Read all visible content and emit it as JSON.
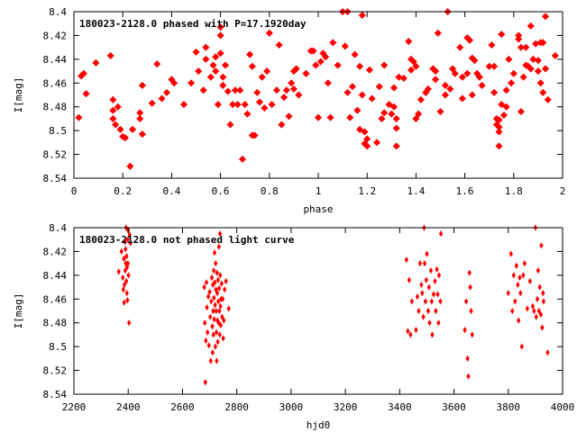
{
  "colors": {
    "points": "#ff0000",
    "axes": "#000000",
    "background": "#ffffff"
  },
  "chart_data": [
    {
      "type": "scatter",
      "title": "180023-2128.0 phased with P=17.1920day",
      "xlabel": "phase",
      "ylabel": "I[mag]",
      "xlim": [
        0,
        2
      ],
      "ylim": [
        8.4,
        8.54
      ],
      "y_inverted": true,
      "xticks": [
        "0",
        "0.2",
        "0.4",
        "0.6",
        "0.8",
        "1",
        "1.2",
        "1.4",
        "1.6",
        "1.8",
        "2"
      ],
      "yticks": [
        "8.4",
        "8.42",
        "8.44",
        "8.46",
        "8.48",
        "8.5",
        "8.52",
        "8.54"
      ],
      "grid": false,
      "marker": "star",
      "points": [
        [
          0.02,
          8.489
        ],
        [
          0.03,
          8.454
        ],
        [
          0.04,
          8.452
        ],
        [
          0.05,
          8.469
        ],
        [
          0.09,
          8.443
        ],
        [
          0.15,
          8.437
        ],
        [
          0.16,
          8.474
        ],
        [
          0.16,
          8.483
        ],
        [
          0.16,
          8.49
        ],
        [
          0.17,
          8.495
        ],
        [
          0.18,
          8.48
        ],
        [
          0.19,
          8.499
        ],
        [
          0.2,
          8.505
        ],
        [
          0.21,
          8.506
        ],
        [
          0.23,
          8.53
        ],
        [
          0.24,
          8.499
        ],
        [
          0.27,
          8.485
        ],
        [
          0.27,
          8.49
        ],
        [
          0.28,
          8.503
        ],
        [
          0.28,
          8.462
        ],
        [
          0.32,
          8.477
        ],
        [
          0.34,
          8.444
        ],
        [
          0.36,
          8.473
        ],
        [
          0.38,
          8.468
        ],
        [
          0.4,
          8.457
        ],
        [
          0.41,
          8.46
        ],
        [
          0.45,
          8.478
        ],
        [
          0.48,
          8.46
        ],
        [
          0.5,
          8.434
        ],
        [
          0.51,
          8.45
        ],
        [
          0.53,
          8.466
        ],
        [
          0.54,
          8.43
        ],
        [
          0.54,
          8.44
        ],
        [
          0.56,
          8.455
        ],
        [
          0.57,
          8.445
        ],
        [
          0.58,
          8.438
        ],
        [
          0.58,
          8.45
        ],
        [
          0.59,
          8.478
        ],
        [
          0.6,
          8.413
        ],
        [
          0.6,
          8.42
        ],
        [
          0.6,
          8.435
        ],
        [
          0.61,
          8.455
        ],
        [
          0.61,
          8.462
        ],
        [
          0.62,
          8.445
        ],
        [
          0.63,
          8.467
        ],
        [
          0.64,
          8.495
        ],
        [
          0.65,
          8.478
        ],
        [
          0.66,
          8.466
        ],
        [
          0.67,
          8.478
        ],
        [
          0.68,
          8.466
        ],
        [
          0.69,
          8.524
        ],
        [
          0.7,
          8.478
        ],
        [
          0.71,
          8.486
        ],
        [
          0.72,
          8.436
        ],
        [
          0.73,
          8.446
        ],
        [
          0.73,
          8.504
        ],
        [
          0.74,
          8.504
        ],
        [
          0.75,
          8.468
        ],
        [
          0.76,
          8.476
        ],
        [
          0.77,
          8.455
        ],
        [
          0.78,
          8.481
        ],
        [
          0.79,
          8.45
        ],
        [
          0.8,
          8.418
        ],
        [
          0.81,
          8.478
        ],
        [
          0.83,
          8.466
        ],
        [
          0.84,
          8.428
        ],
        [
          0.85,
          8.495
        ],
        [
          0.86,
          8.472
        ],
        [
          0.87,
          8.466
        ],
        [
          0.88,
          8.488
        ],
        [
          0.89,
          8.46
        ],
        [
          0.9,
          8.45
        ],
        [
          0.9,
          8.465
        ],
        [
          0.91,
          8.448
        ],
        [
          0.92,
          8.47
        ],
        [
          0.95,
          8.452
        ],
        [
          0.97,
          8.433
        ],
        [
          0.98,
          8.433
        ],
        [
          0.99,
          8.445
        ],
        [
          1.0,
          8.489
        ],
        [
          1.01,
          8.442
        ],
        [
          1.02,
          8.435
        ],
        [
          1.03,
          8.438
        ],
        [
          1.04,
          8.46
        ],
        [
          1.05,
          8.489
        ],
        [
          1.06,
          8.426
        ],
        [
          1.08,
          8.445
        ],
        [
          1.1,
          8.4
        ],
        [
          1.11,
          8.429
        ],
        [
          1.12,
          8.4
        ],
        [
          1.12,
          8.468
        ],
        [
          1.13,
          8.489
        ],
        [
          1.14,
          8.463
        ],
        [
          1.15,
          8.436
        ],
        [
          1.16,
          8.483
        ],
        [
          1.17,
          8.446
        ],
        [
          1.17,
          8.499
        ],
        [
          1.18,
          8.403
        ],
        [
          1.18,
          8.47
        ],
        [
          1.19,
          8.501
        ],
        [
          1.19,
          8.511
        ],
        [
          1.2,
          8.507
        ],
        [
          1.2,
          8.513
        ],
        [
          1.21,
          8.449
        ],
        [
          1.22,
          8.473
        ],
        [
          1.24,
          8.51
        ],
        [
          1.25,
          8.463
        ],
        [
          1.26,
          8.49
        ],
        [
          1.27,
          8.485
        ],
        [
          1.27,
          8.445
        ],
        [
          1.29,
          8.478
        ],
        [
          1.3,
          8.486
        ],
        [
          1.31,
          8.464
        ],
        [
          1.31,
          8.48
        ],
        [
          1.32,
          8.49
        ],
        [
          1.32,
          8.498
        ],
        [
          1.32,
          8.513
        ],
        [
          1.33,
          8.455
        ],
        [
          1.35,
          8.456
        ],
        [
          1.37,
          8.425
        ],
        [
          1.38,
          8.44
        ],
        [
          1.38,
          8.449
        ],
        [
          1.39,
          8.442
        ],
        [
          1.4,
          8.446
        ],
        [
          1.4,
          8.49
        ],
        [
          1.41,
          8.486
        ],
        [
          1.42,
          8.474
        ],
        [
          1.44,
          8.468
        ],
        [
          1.45,
          8.465
        ],
        [
          1.47,
          8.448
        ],
        [
          1.48,
          8.45
        ],
        [
          1.48,
          8.457
        ],
        [
          1.49,
          8.418
        ],
        [
          1.5,
          8.484
        ],
        [
          1.52,
          8.462
        ],
        [
          1.52,
          8.47
        ],
        [
          1.53,
          8.4
        ],
        [
          1.54,
          8.465
        ],
        [
          1.55,
          8.448
        ],
        [
          1.56,
          8.452
        ],
        [
          1.58,
          8.43
        ],
        [
          1.59,
          8.455
        ],
        [
          1.59,
          8.473
        ],
        [
          1.61,
          8.452
        ],
        [
          1.61,
          8.422
        ],
        [
          1.62,
          8.424
        ],
        [
          1.63,
          8.439
        ],
        [
          1.63,
          8.47
        ],
        [
          1.64,
          8.441
        ],
        [
          1.65,
          8.452
        ],
        [
          1.66,
          8.455
        ],
        [
          1.67,
          8.462
        ],
        [
          1.7,
          8.446
        ],
        [
          1.71,
          8.428
        ],
        [
          1.72,
          8.446
        ],
        [
          1.72,
          8.468
        ],
        [
          1.73,
          8.49
        ],
        [
          1.73,
          8.495
        ],
        [
          1.74,
          8.491
        ],
        [
          1.74,
          8.497
        ],
        [
          1.74,
          8.501
        ],
        [
          1.74,
          8.513
        ],
        [
          1.75,
          8.419
        ],
        [
          1.75,
          8.478
        ],
        [
          1.76,
          8.487
        ],
        [
          1.77,
          8.466
        ],
        [
          1.77,
          8.48
        ],
        [
          1.78,
          8.44
        ],
        [
          1.79,
          8.46
        ],
        [
          1.8,
          8.452
        ],
        [
          1.82,
          8.42
        ],
        [
          1.82,
          8.423
        ],
        [
          1.83,
          8.43
        ],
        [
          1.83,
          8.484
        ],
        [
          1.84,
          8.455
        ],
        [
          1.85,
          8.43
        ],
        [
          1.85,
          8.445
        ],
        [
          1.86,
          8.446
        ],
        [
          1.87,
          8.412
        ],
        [
          1.87,
          8.448
        ],
        [
          1.88,
          8.44
        ],
        [
          1.89,
          8.427
        ],
        [
          1.9,
          8.441
        ],
        [
          1.9,
          8.45
        ],
        [
          1.91,
          8.426
        ],
        [
          1.91,
          8.46
        ],
        [
          1.92,
          8.426
        ],
        [
          1.92,
          8.468
        ],
        [
          1.93,
          8.404
        ],
        [
          1.93,
          8.448
        ],
        [
          1.94,
          8.474
        ],
        [
          1.97,
          8.437
        ]
      ]
    },
    {
      "type": "scatter",
      "title": "180023-2128.0 not phased light curve",
      "xlabel": "hjd0",
      "ylabel": "I[mag]",
      "xlim": [
        2200,
        4000
      ],
      "ylim": [
        8.4,
        8.54
      ],
      "y_inverted": true,
      "xticks": [
        "2200",
        "2400",
        "2600",
        "2800",
        "3000",
        "3200",
        "3400",
        "3600",
        "3800",
        "4000"
      ],
      "yticks": [
        "8.4",
        "8.42",
        "8.44",
        "8.46",
        "8.48",
        "8.5",
        "8.52",
        "8.54"
      ],
      "grid": false,
      "marker": "diamond",
      "points": [
        [
          2365,
          8.437
        ],
        [
          2375,
          8.42
        ],
        [
          2380,
          8.442
        ],
        [
          2382,
          8.452
        ],
        [
          2384,
          8.426
        ],
        [
          2385,
          8.463
        ],
        [
          2386,
          8.448
        ],
        [
          2388,
          8.412
        ],
        [
          2389,
          8.436
        ],
        [
          2390,
          8.418
        ],
        [
          2391,
          8.43
        ],
        [
          2392,
          8.4
        ],
        [
          2393,
          8.445
        ],
        [
          2394,
          8.424
        ],
        [
          2395,
          8.455
        ],
        [
          2396,
          8.433
        ],
        [
          2397,
          8.461
        ],
        [
          2398,
          8.41
        ],
        [
          2399,
          8.43
        ],
        [
          2400,
          8.402
        ],
        [
          2401,
          8.44
        ],
        [
          2403,
          8.48
        ],
        [
          2405,
          8.406
        ],
        [
          2408,
          8.413
        ],
        [
          2680,
          8.45
        ],
        [
          2682,
          8.48
        ],
        [
          2684,
          8.53
        ],
        [
          2686,
          8.495
        ],
        [
          2688,
          8.446
        ],
        [
          2690,
          8.467
        ],
        [
          2692,
          8.488
        ],
        [
          2695,
          8.458
        ],
        [
          2697,
          8.499
        ],
        [
          2700,
          8.454
        ],
        [
          2702,
          8.475
        ],
        [
          2704,
          8.512
        ],
        [
          2706,
          8.462
        ],
        [
          2708,
          8.442
        ],
        [
          2710,
          8.483
        ],
        [
          2711,
          8.505
        ],
        [
          2712,
          8.448
        ],
        [
          2713,
          8.47
        ],
        [
          2714,
          8.49
        ],
        [
          2715,
          8.436
        ],
        [
          2716,
          8.459
        ],
        [
          2717,
          8.477
        ],
        [
          2718,
          8.421
        ],
        [
          2719,
          8.446
        ],
        [
          2720,
          8.465
        ],
        [
          2721,
          8.5
        ],
        [
          2722,
          8.43
        ],
        [
          2723,
          8.452
        ],
        [
          2724,
          8.47
        ],
        [
          2725,
          8.488
        ],
        [
          2726,
          8.512
        ],
        [
          2727,
          8.438
        ],
        [
          2728,
          8.455
        ],
        [
          2729,
          8.478
        ],
        [
          2730,
          8.496
        ],
        [
          2731,
          8.444
        ],
        [
          2732,
          8.462
        ],
        [
          2733,
          8.48
        ],
        [
          2734,
          8.416
        ],
        [
          2735,
          8.451
        ],
        [
          2736,
          8.47
        ],
        [
          2737,
          8.49
        ],
        [
          2738,
          8.405
        ],
        [
          2739,
          8.44
        ],
        [
          2740,
          8.466
        ],
        [
          2741,
          8.482
        ],
        [
          2742,
          8.46
        ],
        [
          2744,
          8.447
        ],
        [
          2746,
          8.475
        ],
        [
          2748,
          8.46
        ],
        [
          2750,
          8.493
        ],
        [
          2752,
          8.478
        ],
        [
          2755,
          8.452
        ],
        [
          2760,
          8.445
        ],
        [
          2770,
          8.468
        ],
        [
          3425,
          8.427
        ],
        [
          3430,
          8.487
        ],
        [
          3435,
          8.444
        ],
        [
          3440,
          8.49
        ],
        [
          3445,
          8.462
        ],
        [
          3460,
          8.486
        ],
        [
          3465,
          8.458
        ],
        [
          3470,
          8.47
        ],
        [
          3475,
          8.43
        ],
        [
          3480,
          8.448
        ],
        [
          3483,
          8.455
        ],
        [
          3487,
          8.475
        ],
        [
          3490,
          8.4
        ],
        [
          3492,
          8.43
        ],
        [
          3495,
          8.462
        ],
        [
          3498,
          8.444
        ],
        [
          3500,
          8.422
        ],
        [
          3505,
          8.47
        ],
        [
          3508,
          8.45
        ],
        [
          3510,
          8.48
        ],
        [
          3515,
          8.436
        ],
        [
          3518,
          8.462
        ],
        [
          3520,
          8.49
        ],
        [
          3525,
          8.456
        ],
        [
          3530,
          8.445
        ],
        [
          3533,
          8.47
        ],
        [
          3537,
          8.435
        ],
        [
          3540,
          8.456
        ],
        [
          3543,
          8.48
        ],
        [
          3545,
          8.44
        ],
        [
          3550,
          8.462
        ],
        [
          3552,
          8.405
        ],
        [
          3640,
          8.486
        ],
        [
          3645,
          8.462
        ],
        [
          3650,
          8.51
        ],
        [
          3653,
          8.525
        ],
        [
          3657,
          8.438
        ],
        [
          3660,
          8.45
        ],
        [
          3663,
          8.47
        ],
        [
          3667,
          8.49
        ],
        [
          3800,
          8.455
        ],
        [
          3810,
          8.422
        ],
        [
          3815,
          8.47
        ],
        [
          3820,
          8.44
        ],
        [
          3825,
          8.462
        ],
        [
          3830,
          8.432
        ],
        [
          3835,
          8.448
        ],
        [
          3838,
          8.478
        ],
        [
          3842,
          8.442
        ],
        [
          3845,
          8.455
        ],
        [
          3850,
          8.5
        ],
        [
          3855,
          8.44
        ],
        [
          3860,
          8.43
        ],
        [
          3870,
          8.468
        ],
        [
          3880,
          8.445
        ],
        [
          3890,
          8.466
        ],
        [
          3895,
          8.47
        ],
        [
          3900,
          8.4
        ],
        [
          3903,
          8.475
        ],
        [
          3907,
          8.46
        ],
        [
          3910,
          8.436
        ],
        [
          3913,
          8.47
        ],
        [
          3916,
          8.45
        ],
        [
          3920,
          8.473
        ],
        [
          3922,
          8.415
        ],
        [
          3925,
          8.484
        ],
        [
          3928,
          8.455
        ],
        [
          3930,
          8.462
        ],
        [
          3945,
          8.505
        ]
      ]
    }
  ]
}
